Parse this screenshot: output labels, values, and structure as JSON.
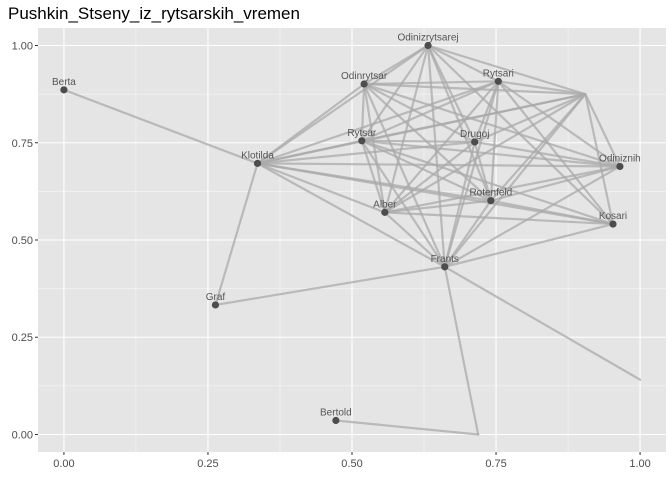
{
  "chart_data": {
    "type": "scatter",
    "title": "Pushkin_Stseny_iz_rytsarskih_vremen",
    "xlabel": "",
    "ylabel": "",
    "xlim": [
      -0.045,
      1.045
    ],
    "ylim": [
      -0.045,
      1.045
    ],
    "x_ticks": [
      {
        "value": 0.0,
        "label": "0.00"
      },
      {
        "value": 0.25,
        "label": "0.25"
      },
      {
        "value": 0.5,
        "label": "0.50"
      },
      {
        "value": 0.75,
        "label": "0.75"
      },
      {
        "value": 1.0,
        "label": "1.00"
      }
    ],
    "y_ticks": [
      {
        "value": 0.0,
        "label": "0.00"
      },
      {
        "value": 0.25,
        "label": "0.25"
      },
      {
        "value": 0.5,
        "label": "0.50"
      },
      {
        "value": 0.75,
        "label": "0.75"
      },
      {
        "value": 1.0,
        "label": "1.00"
      }
    ],
    "grid": true,
    "colors": {
      "panel": "#e5e5e5",
      "grid_major": "#ffffff",
      "edge": "#a9a9a9",
      "node": "#4d4d4d",
      "label": "#555555"
    },
    "nodes": [
      {
        "id": "Odinizrytsarej",
        "label": "Odinizrytsarej",
        "x": 0.632,
        "y": 1.0
      },
      {
        "id": "Odinrytsar",
        "label": "Odinrytsar",
        "x": 0.521,
        "y": 0.901
      },
      {
        "id": "Rytsari",
        "label": "Rytsari",
        "x": 0.754,
        "y": 0.908
      },
      {
        "id": "Berta",
        "label": "Berta",
        "x": 0.0,
        "y": 0.886
      },
      {
        "id": "Rytsar",
        "label": "Rytsar",
        "x": 0.517,
        "y": 0.755
      },
      {
        "id": "Drugoj",
        "label": "Drugoj",
        "x": 0.713,
        "y": 0.752
      },
      {
        "id": "Klotilda",
        "label": "Klotilda",
        "x": 0.336,
        "y": 0.697
      },
      {
        "id": "Odiniznih",
        "label": "Odiniznih",
        "x": 0.965,
        "y": 0.689
      },
      {
        "id": "Rotenfeld",
        "label": "Rotenfeld",
        "x": 0.741,
        "y": 0.601
      },
      {
        "id": "Alber",
        "label": "Alber",
        "x": 0.557,
        "y": 0.571
      },
      {
        "id": "Kosari",
        "label": "Kosari",
        "x": 0.953,
        "y": 0.541
      },
      {
        "id": "Frants",
        "label": "Frants",
        "x": 0.661,
        "y": 0.431
      },
      {
        "id": "Graf",
        "label": "Graf",
        "x": 0.263,
        "y": 0.333
      },
      {
        "id": "Bertold",
        "label": "Bertold",
        "x": 0.472,
        "y": 0.036
      },
      {
        "id": "p_upper_right",
        "label": "",
        "x": 0.905,
        "y": 0.875
      },
      {
        "id": "p_lower_right",
        "label": "",
        "x": 1.0,
        "y": 0.141
      },
      {
        "id": "p_bottom",
        "label": "",
        "x": 0.719,
        "y": 0.0
      }
    ],
    "edges": [
      [
        "Berta",
        "Klotilda"
      ],
      [
        "Klotilda",
        "Graf"
      ],
      [
        "Graf",
        "Frants"
      ],
      [
        "Frants",
        "p_lower_right"
      ],
      [
        "Frants",
        "p_bottom"
      ],
      [
        "Bertold",
        "p_bottom"
      ],
      [
        "Klotilda",
        "Odinizrytsarej"
      ],
      [
        "Klotilda",
        "Odinrytsar"
      ],
      [
        "Klotilda",
        "Rytsari"
      ],
      [
        "Klotilda",
        "Rytsar"
      ],
      [
        "Klotilda",
        "Drugoj"
      ],
      [
        "Klotilda",
        "Odiniznih"
      ],
      [
        "Klotilda",
        "Rotenfeld"
      ],
      [
        "Klotilda",
        "Alber"
      ],
      [
        "Klotilda",
        "Kosari"
      ],
      [
        "Klotilda",
        "Frants"
      ],
      [
        "Klotilda",
        "p_upper_right"
      ],
      [
        "Odinizrytsarej",
        "Odinrytsar"
      ],
      [
        "Odinizrytsarej",
        "Rytsari"
      ],
      [
        "Odinizrytsarej",
        "Rytsar"
      ],
      [
        "Odinizrytsarej",
        "Drugoj"
      ],
      [
        "Odinizrytsarej",
        "Alber"
      ],
      [
        "Odinizrytsarej",
        "Rotenfeld"
      ],
      [
        "Odinizrytsarej",
        "Frants"
      ],
      [
        "Odinizrytsarej",
        "Kosari"
      ],
      [
        "Odinizrytsarej",
        "p_upper_right"
      ],
      [
        "Odinrytsar",
        "Rytsari"
      ],
      [
        "Odinrytsar",
        "Rytsar"
      ],
      [
        "Odinrytsar",
        "Drugoj"
      ],
      [
        "Odinrytsar",
        "Alber"
      ],
      [
        "Odinrytsar",
        "Rotenfeld"
      ],
      [
        "Odinrytsar",
        "Frants"
      ],
      [
        "Odinrytsar",
        "Odiniznih"
      ],
      [
        "Odinrytsar",
        "p_upper_right"
      ],
      [
        "Rytsari",
        "Rytsar"
      ],
      [
        "Rytsari",
        "Drugoj"
      ],
      [
        "Rytsari",
        "Alber"
      ],
      [
        "Rytsari",
        "Rotenfeld"
      ],
      [
        "Rytsari",
        "Frants"
      ],
      [
        "Rytsari",
        "Kosari"
      ],
      [
        "Rytsari",
        "Odiniznih"
      ],
      [
        "Rytsari",
        "p_upper_right"
      ],
      [
        "Rytsar",
        "Drugoj"
      ],
      [
        "Rytsar",
        "Alber"
      ],
      [
        "Rytsar",
        "Rotenfeld"
      ],
      [
        "Rytsar",
        "Frants"
      ],
      [
        "Rytsar",
        "Odiniznih"
      ],
      [
        "Rytsar",
        "Kosari"
      ],
      [
        "Rytsar",
        "p_upper_right"
      ],
      [
        "Drugoj",
        "Alber"
      ],
      [
        "Drugoj",
        "Rotenfeld"
      ],
      [
        "Drugoj",
        "Frants"
      ],
      [
        "Drugoj",
        "Odiniznih"
      ],
      [
        "Drugoj",
        "p_upper_right"
      ],
      [
        "Alber",
        "Rotenfeld"
      ],
      [
        "Alber",
        "Frants"
      ],
      [
        "Alber",
        "Odiniznih"
      ],
      [
        "Alber",
        "Kosari"
      ],
      [
        "Alber",
        "p_upper_right"
      ],
      [
        "Rotenfeld",
        "Frants"
      ],
      [
        "Rotenfeld",
        "Odiniznih"
      ],
      [
        "Rotenfeld",
        "Kosari"
      ],
      [
        "Rotenfeld",
        "p_upper_right"
      ],
      [
        "Frants",
        "Odiniznih"
      ],
      [
        "Frants",
        "Kosari"
      ],
      [
        "Frants",
        "p_upper_right"
      ],
      [
        "Odiniznih",
        "p_upper_right"
      ],
      [
        "Kosari",
        "p_upper_right"
      ]
    ]
  }
}
